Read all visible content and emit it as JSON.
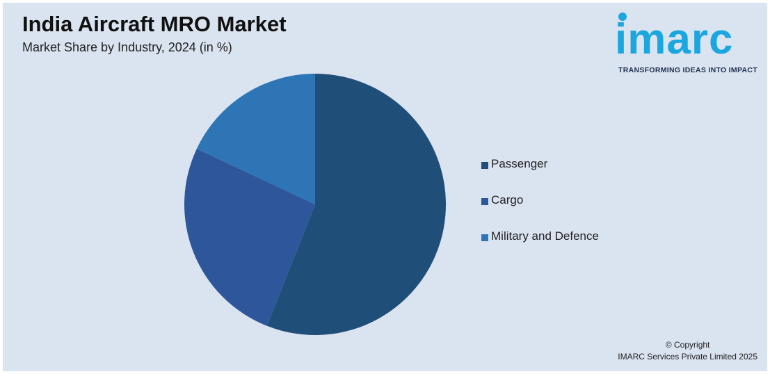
{
  "header": {
    "title": "India Aircraft MRO Market",
    "subtitle": "Market Share by Industry, 2024 (in %)"
  },
  "logo": {
    "wordmark": "imarc",
    "tagline": "TRANSFORMING IDEAS INTO IMPACT",
    "color": "#1aa7e0"
  },
  "chart_data": {
    "type": "pie",
    "title": "India Aircraft MRO Market",
    "subtitle": "Market Share by Industry, 2024 (in %)",
    "categories": [
      "Passenger",
      "Cargo",
      "Military and Defence"
    ],
    "values": [
      56,
      26,
      18
    ],
    "unit": "%",
    "colors": [
      "#1f4e79",
      "#2e569b",
      "#2e75b6"
    ],
    "start_angle_deg": 0,
    "direction": "clockwise",
    "legend_position": "right"
  },
  "footer": {
    "copyright_line1": "© Copyright",
    "copyright_line2": "IMARC Services Private Limited 2025"
  }
}
